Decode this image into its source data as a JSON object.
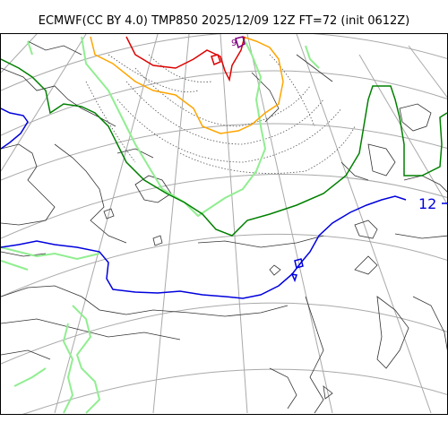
{
  "title": "ECMWF(CC BY 4.0) TMP850 2025/12/09 12Z FT=72 (init 0612Z)",
  "contour_labels": {
    "blue": "12",
    "purple": "9"
  },
  "colors": {
    "graticule": "#a9a9a9",
    "coast": "#333333",
    "isotherm_green_dark": "#008000",
    "isotherm_green_light": "#90ee90",
    "isotherm_blue": "#0000dd",
    "isotherm_red": "#dd0000",
    "isotherm_orange": "#ffa500",
    "isotherm_purple": "#800080",
    "dotted": "#555555"
  }
}
